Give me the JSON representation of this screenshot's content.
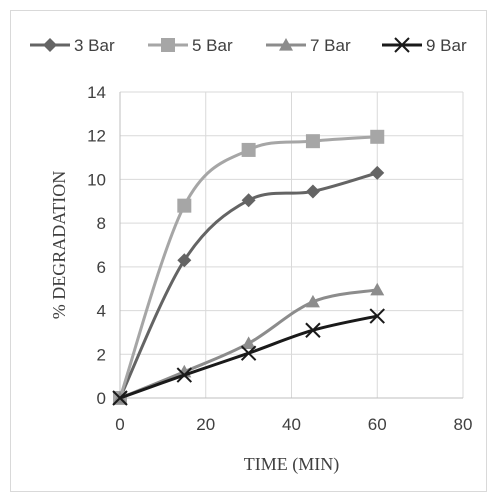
{
  "chart_data": {
    "type": "line",
    "xlabel": "TIME (MIN)",
    "ylabel": "% DEGRADATION",
    "xlim": [
      0,
      80
    ],
    "ylim": [
      0,
      14
    ],
    "xticks": [
      0,
      20,
      40,
      60,
      80
    ],
    "yticks": [
      0,
      2,
      4,
      6,
      8,
      10,
      12,
      14
    ],
    "grid": true,
    "smooth": true,
    "legend_position": "top",
    "series": [
      {
        "name": "3 Bar",
        "color": "#646464",
        "marker": "diamond",
        "x": [
          0,
          15,
          30,
          45,
          60
        ],
        "y": [
          0,
          6.3,
          9.05,
          9.45,
          10.3
        ]
      },
      {
        "name": "5 Bar",
        "color": "#a6a6a6",
        "marker": "square",
        "x": [
          0,
          15,
          30,
          45,
          60
        ],
        "y": [
          0,
          8.8,
          11.35,
          11.75,
          11.95
        ]
      },
      {
        "name": "7 Bar",
        "color": "#8c8c8c",
        "marker": "triangle",
        "x": [
          0,
          15,
          30,
          45,
          60
        ],
        "y": [
          0,
          1.2,
          2.5,
          4.4,
          4.95
        ]
      },
      {
        "name": "9 Bar",
        "color": "#1a1a1a",
        "marker": "x",
        "x": [
          0,
          15,
          30,
          45,
          60
        ],
        "y": [
          0,
          1.05,
          2.05,
          3.1,
          3.75
        ]
      }
    ]
  }
}
